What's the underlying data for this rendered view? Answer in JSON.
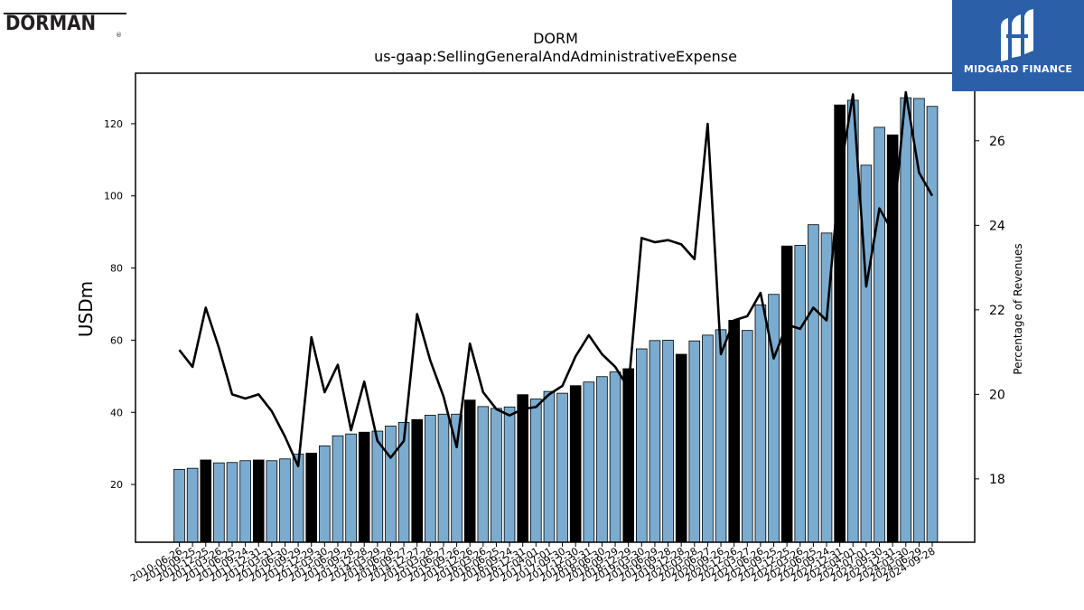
{
  "header": {
    "left_logo": "DORMAN",
    "left_logo_mark": "®",
    "brand_name": "MIDGARD FINANCE"
  },
  "colors": {
    "bar_light": "#7bacd0",
    "bar_dark": "#000000",
    "line": "#000000",
    "brand": "#2b5fa8"
  },
  "chart_data": {
    "type": "bar",
    "title": "DORM",
    "subtitle": "us-gaap:SellingGeneralAndAdministrativeExpense",
    "ylabel": "USDm",
    "ylabel_right": "Percentage of Revenues",
    "ylim": [
      4,
      134
    ],
    "ylim_right": [
      16.5,
      27.6
    ],
    "yticks": [
      20,
      40,
      60,
      80,
      100,
      120
    ],
    "yticks_right": [
      18,
      20,
      22,
      24,
      26
    ],
    "grid": false,
    "categories": [
      "2010-06-26",
      "2010-09-25",
      "2010-12-25",
      "2011-03-26",
      "2011-06-25",
      "2011-09-24",
      "2011-12-31",
      "2012-03-31",
      "2012-06-30",
      "2012-09-29",
      "2012-12-29",
      "2013-03-30",
      "2013-06-29",
      "2013-09-28",
      "2013-12-28",
      "2014-03-29",
      "2014-06-28",
      "2014-09-27",
      "2014-12-27",
      "2015-03-28",
      "2015-06-27",
      "2015-09-26",
      "2015-12-26",
      "2016-03-26",
      "2016-06-25",
      "2016-09-24",
      "2016-12-31",
      "2017-04-01",
      "2017-07-01",
      "2017-09-30",
      "2017-12-30",
      "2018-03-31",
      "2018-06-30",
      "2018-09-29",
      "2018-12-29",
      "2019-03-30",
      "2019-06-29",
      "2019-09-28",
      "2019-12-28",
      "2020-03-28",
      "2020-06-27",
      "2020-09-26",
      "2020-12-26",
      "2021-03-27",
      "2021-06-26",
      "2021-09-25",
      "2021-12-25",
      "2022-03-26",
      "2022-06-25",
      "2022-09-24",
      "2022-12-31",
      "2023-04-01",
      "2023-07-01",
      "2023-09-30",
      "2023-12-31",
      "2024-03-30",
      "2024-06-29",
      "2024-09-28"
    ],
    "series": [
      {
        "kind": "bar",
        "values": [
          24.2,
          24.5,
          26.8,
          26.0,
          26.1,
          26.6,
          26.8,
          26.6,
          27.1,
          28.4,
          28.7,
          30.7,
          33.5,
          34.0,
          34.5,
          34.8,
          36.2,
          37.2,
          38.0,
          39.2,
          39.5,
          39.5,
          43.4,
          41.6,
          41.1,
          41.5,
          44.9,
          43.7,
          45.8,
          45.3,
          47.4,
          48.4,
          49.9,
          51.2,
          52.1,
          57.6,
          59.9,
          60.0,
          56.1,
          59.8,
          61.4,
          62.9,
          65.5,
          62.7,
          69.8,
          72.7,
          86.1,
          86.3,
          92.0,
          89.7,
          125.2,
          126.5,
          108.5,
          119.0,
          116.9,
          127.2,
          127.0,
          124.8
        ],
        "highlight": [
          false,
          false,
          true,
          false,
          false,
          false,
          true,
          false,
          false,
          false,
          true,
          false,
          false,
          false,
          true,
          false,
          false,
          false,
          true,
          false,
          false,
          false,
          true,
          false,
          false,
          false,
          true,
          false,
          false,
          false,
          true,
          false,
          false,
          false,
          true,
          false,
          false,
          false,
          true,
          false,
          false,
          false,
          true,
          false,
          false,
          false,
          true,
          false,
          false,
          false,
          true,
          false,
          false,
          false,
          true,
          false,
          false,
          false
        ]
      },
      {
        "kind": "line",
        "axis": "right",
        "values": [
          21.05,
          20.65,
          22.05,
          21.1,
          20.0,
          19.9,
          20.0,
          19.6,
          19.0,
          18.3,
          21.35,
          20.05,
          20.7,
          19.15,
          20.3,
          18.9,
          18.5,
          18.9,
          21.9,
          20.8,
          19.95,
          18.75,
          21.2,
          20.05,
          19.65,
          19.5,
          19.65,
          19.7,
          20.0,
          20.2,
          20.9,
          21.4,
          20.95,
          20.65,
          20.15,
          23.7,
          23.6,
          23.65,
          23.55,
          23.2,
          26.4,
          20.95,
          21.75,
          21.85,
          22.4,
          20.85,
          21.65,
          21.55,
          22.05,
          21.75,
          25.2,
          27.1,
          22.55,
          24.4,
          23.85,
          27.15,
          25.25,
          24.7
        ]
      }
    ]
  }
}
